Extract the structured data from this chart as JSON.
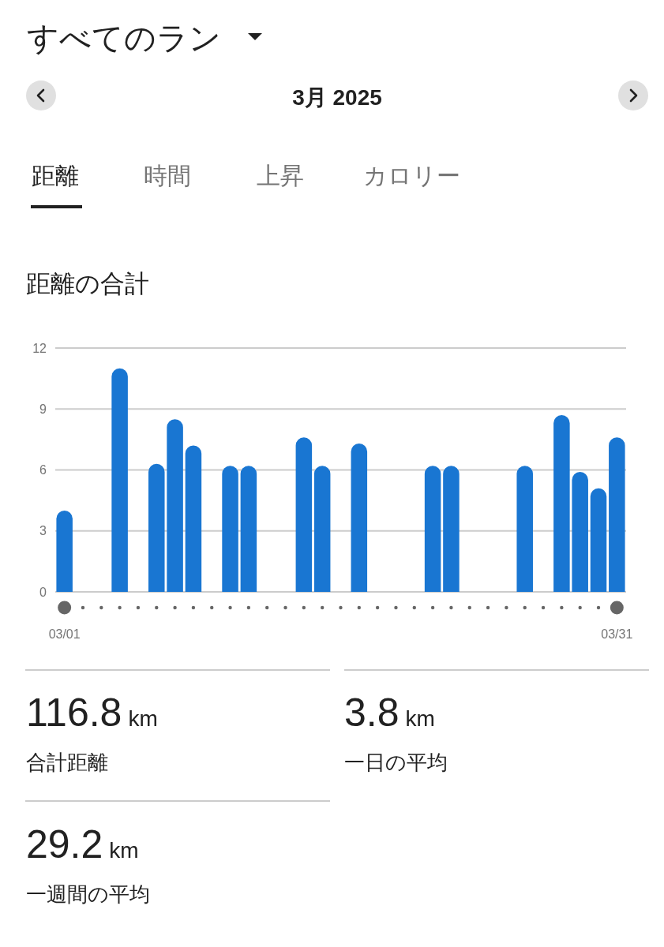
{
  "chart_data": {
    "type": "bar",
    "title": "距離の合計",
    "categories": [
      "03/01",
      null,
      null,
      null,
      null,
      null,
      null,
      null,
      null,
      null,
      null,
      null,
      null,
      null,
      null,
      null,
      null,
      null,
      null,
      null,
      null,
      null,
      null,
      null,
      null,
      null,
      null,
      null,
      null,
      null,
      "03/31"
    ],
    "values": [
      4,
      null,
      null,
      11,
      null,
      6.3,
      8.5,
      7.2,
      null,
      6.2,
      6.2,
      null,
      null,
      7.6,
      6.2,
      null,
      7.3,
      null,
      null,
      null,
      6.2,
      6.2,
      null,
      null,
      null,
      6.2,
      null,
      8.7,
      5.9,
      5.1,
      7.6
    ],
    "color": "#1976d2",
    "ylim": [
      0,
      12
    ],
    "yticks": [
      0,
      3,
      6,
      9,
      12
    ],
    "grid": "y",
    "annotations": [
      "すべてのラン",
      "3月 2025",
      "距離",
      "時間",
      "上昇",
      "カロリー",
      "116.8 km",
      "合計距離",
      "3.8 km",
      "一日の平均",
      "29.2 km",
      "一週間の平均"
    ]
  }
}
